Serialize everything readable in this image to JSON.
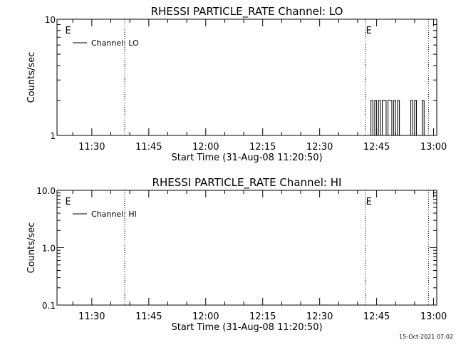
{
  "chart_data": [
    {
      "type": "line",
      "title": "RHESSI PARTICLE_RATE Channel: LO",
      "xlabel": "Start Time (31-Aug-08 11:20:50)",
      "ylabel": "Counts/sec",
      "yscale": "log",
      "ylim": [
        1,
        10
      ],
      "yticks": [
        "10",
        "1"
      ],
      "xlim": [
        "11:20:50",
        "13:00:50"
      ],
      "xticks": [
        "11:30",
        "11:45",
        "12:00",
        "12:15",
        "12:30",
        "12:45",
        "13:00"
      ],
      "grid": false,
      "legend": "top-left",
      "series": [
        {
          "name": "Channel: LO",
          "x": [
            "12:43:00",
            "12:43:30",
            "12:44:00",
            "12:44:30",
            "12:45:00",
            "12:45:30",
            "12:46:00",
            "12:46:30",
            "12:47:00",
            "12:47:30",
            "12:48:00",
            "12:48:30",
            "12:49:00",
            "12:49:30",
            "12:50:00",
            "12:50:30",
            "12:51:00",
            "12:51:30",
            "12:52:00",
            "12:52:30",
            "12:53:00",
            "12:53:30",
            "12:54:00",
            "12:54:30",
            "12:55:00",
            "12:55:30",
            "12:56:00",
            "12:56:30",
            "12:57:00",
            "12:57:30",
            "12:58:00"
          ],
          "values": [
            1,
            2,
            1,
            2,
            1,
            2,
            1,
            2,
            2,
            1,
            2,
            2,
            1,
            2,
            1,
            2,
            1,
            1,
            1,
            1,
            1,
            1,
            2,
            1,
            2,
            1,
            1,
            1,
            2,
            1,
            1
          ]
        }
      ],
      "markers": [
        {
          "x": "11:23:00",
          "label": "E",
          "line": false
        },
        {
          "x": "11:38:40",
          "label": "",
          "line": true
        },
        {
          "x": "12:42:00",
          "label": "E",
          "line": true
        },
        {
          "x": "12:58:40",
          "label": "",
          "line": true
        }
      ]
    },
    {
      "type": "line",
      "title": "RHESSI PARTICLE_RATE Channel: HI",
      "xlabel": "Start Time (31-Aug-08 11:20:50)",
      "ylabel": "Counts/sec",
      "yscale": "log",
      "ylim": [
        0.1,
        10
      ],
      "yticks": [
        "10.0",
        "1.0",
        "0.1"
      ],
      "xlim": [
        "11:20:50",
        "13:00:50"
      ],
      "xticks": [
        "11:30",
        "11:45",
        "12:00",
        "12:15",
        "12:30",
        "12:45",
        "13:00"
      ],
      "grid": false,
      "legend": "top-left",
      "series": [
        {
          "name": "Channel: HI",
          "x": [],
          "values": []
        }
      ],
      "markers": [
        {
          "x": "11:23:00",
          "label": "E",
          "line": false
        },
        {
          "x": "11:38:40",
          "label": "",
          "line": true
        },
        {
          "x": "12:42:00",
          "label": "E",
          "line": true
        },
        {
          "x": "12:58:40",
          "label": "",
          "line": true
        }
      ]
    }
  ],
  "footer": {
    "timestamp": "15-Oct-2021 07:02"
  }
}
